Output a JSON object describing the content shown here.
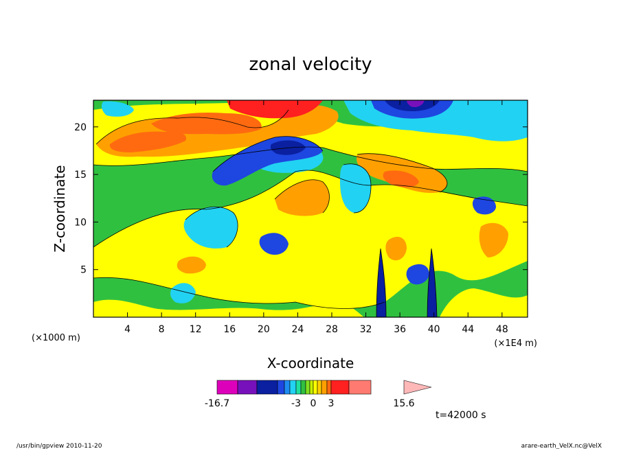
{
  "chart_data": {
    "type": "heatmap",
    "title": "zonal velocity",
    "xlabel": "X-coordinate",
    "ylabel": "Z-coordinate",
    "x_unit_left": "(×1000 m)",
    "x_unit_right": "(×1E4 m)",
    "x_ticks": [
      4,
      8,
      12,
      16,
      20,
      24,
      28,
      32,
      36,
      40,
      44,
      48
    ],
    "y_ticks": [
      5,
      10,
      15,
      20
    ],
    "xlim": [
      0,
      51
    ],
    "ylim": [
      0,
      22.8
    ],
    "colorbar": {
      "min_label": "-16.7",
      "max_label": "15.6",
      "mid_labels": [
        "-3",
        "0",
        "3"
      ],
      "levels": [
        -16.7,
        -12,
        -9,
        -6,
        -5,
        -4,
        -3,
        -2,
        -1,
        0,
        1,
        2,
        3,
        4,
        6,
        9,
        12,
        15.6
      ],
      "colors": [
        "#dd00bb",
        "#7711bb",
        "#0a20a0",
        "#1e46e0",
        "#1e8cf0",
        "#22d2f2",
        "#20e0a0",
        "#30c040",
        "#80e020",
        "#c8f000",
        "#ffff00",
        "#ffd000",
        "#ffa000",
        "#ff6a10",
        "#ff2020",
        "#ff7a70",
        "#ffb8b8"
      ]
    },
    "time_label": "t=42000 s",
    "footer_left": "/usr/bin/gpview   2010-11-20",
    "footer_right": "arare-earth_VelX.nc@VelX"
  }
}
